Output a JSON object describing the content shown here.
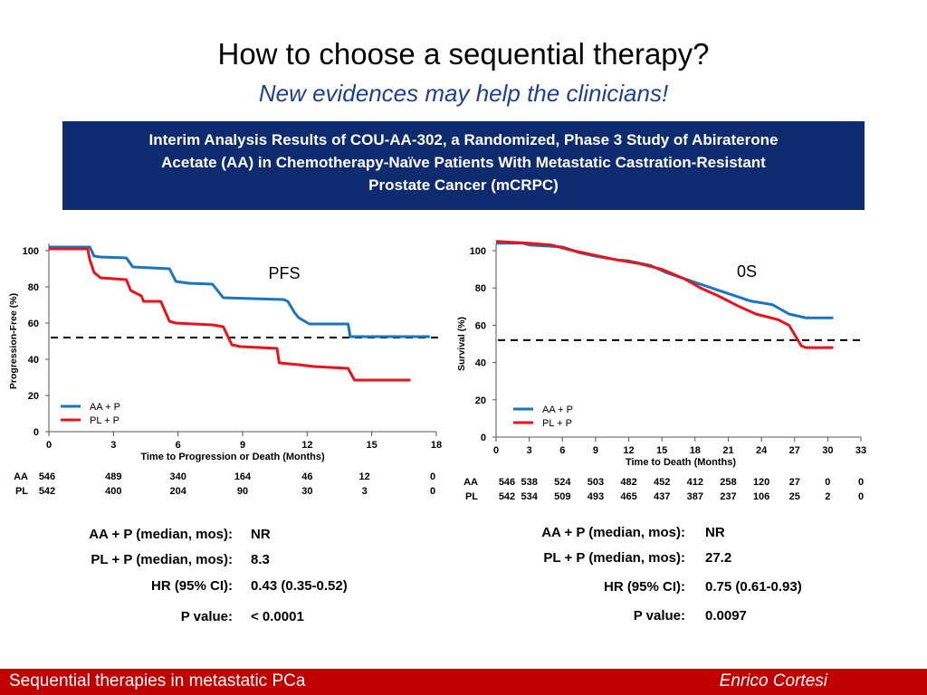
{
  "slide": {
    "title": "How to choose a sequential therapy?",
    "subtitle": "New evidences may help the clinicians!"
  },
  "study_box": {
    "lines": [
      "Interim Analysis Results of COU-AA-302, a Randomized, Phase 3 Study of Abiraterone",
      "Acetate (AA) in Chemotherapy-Naïve Patients With Metastatic Castration-Resistant",
      "Prostate Cancer (mCRPC)"
    ],
    "background": "#0d2b6e"
  },
  "colors": {
    "aa_p": "#1a75bc",
    "pl_p": "#e8141b",
    "footer": "#c00000"
  },
  "chart_data": [
    {
      "type": "line",
      "title": "PFS",
      "xlabel": "Time to Progression or Death (Months)",
      "ylabel": "Progression-Free (%)",
      "xlim": [
        0,
        18
      ],
      "ylim": [
        0,
        100
      ],
      "x_ticks": [
        0,
        3,
        6,
        9,
        12,
        15,
        18
      ],
      "y_ticks": [
        0,
        20,
        40,
        60,
        80,
        100
      ],
      "reference_line_y": 52,
      "legend": [
        "AA + P",
        "PL + P"
      ],
      "legend_position": "bottom-left",
      "series": [
        {
          "name": "AA + P",
          "color": "#1a75bc",
          "points": [
            [
              0,
              102
            ],
            [
              0.3,
              102
            ],
            [
              1.9,
              102
            ],
            [
              2.1,
              97
            ],
            [
              2.4,
              96.5
            ],
            [
              3.6,
              96
            ],
            [
              3.9,
              91
            ],
            [
              5.6,
              90
            ],
            [
              5.9,
              83
            ],
            [
              6.5,
              82
            ],
            [
              7.6,
              81.5
            ],
            [
              8.1,
              74
            ],
            [
              10.9,
              73
            ],
            [
              11.1,
              72
            ],
            [
              11.4,
              66
            ],
            [
              11.6,
              63
            ],
            [
              12.1,
              59.5
            ],
            [
              13.9,
              59.5
            ],
            [
              14.0,
              52.5
            ],
            [
              17.7,
              52.5
            ]
          ]
        },
        {
          "name": "PL + P",
          "color": "#e8141b",
          "points": [
            [
              0,
              101
            ],
            [
              0.3,
              101
            ],
            [
              1.8,
              101
            ],
            [
              1.9,
              95
            ],
            [
              2.1,
              88
            ],
            [
              2.4,
              85
            ],
            [
              3.6,
              84
            ],
            [
              3.8,
              78
            ],
            [
              4.3,
              75
            ],
            [
              4.4,
              72
            ],
            [
              5.2,
              72
            ],
            [
              5.6,
              61
            ],
            [
              5.9,
              60
            ],
            [
              7.6,
              59
            ],
            [
              8.1,
              58
            ],
            [
              8.5,
              48
            ],
            [
              8.9,
              47
            ],
            [
              10.6,
              46
            ],
            [
              10.7,
              38
            ],
            [
              11.6,
              37
            ],
            [
              12.3,
              36
            ],
            [
              13.9,
              35
            ],
            [
              14.2,
              28.5
            ],
            [
              16.8,
              28.5
            ]
          ]
        }
      ],
      "at_risk": {
        "columns": [
          "0",
          "3",
          "6",
          "9",
          "12",
          "15",
          "18"
        ],
        "rows": [
          {
            "label": "AA",
            "values": [
              "546",
              "489",
              "340",
              "164",
              "46",
              "12",
              "0"
            ]
          },
          {
            "label": "PL",
            "values": [
              "542",
              "400",
              "204",
              "90",
              "30",
              "3",
              "0"
            ]
          }
        ]
      }
    },
    {
      "type": "line",
      "title": "0S",
      "xlabel": "Time to Death (Months)",
      "ylabel": "Survival (%)",
      "xlim": [
        0,
        33
      ],
      "ylim": [
        0,
        100
      ],
      "x_ticks": [
        0,
        3,
        6,
        9,
        12,
        15,
        18,
        21,
        24,
        27,
        30,
        33
      ],
      "y_ticks": [
        0,
        20,
        40,
        60,
        80,
        100
      ],
      "reference_line_y": 52,
      "legend": [
        "AA + P",
        "PL + P"
      ],
      "legend_position": "bottom-left",
      "series": [
        {
          "name": "AA + P",
          "color": "#1a75bc",
          "points": [
            [
              0,
              104
            ],
            [
              2.5,
              104
            ],
            [
              3,
              103
            ],
            [
              6,
              102
            ],
            [
              7.5,
              99
            ],
            [
              9,
              97
            ],
            [
              11,
              95
            ],
            [
              12,
              94.5
            ],
            [
              14,
              92
            ],
            [
              15.5,
              88
            ],
            [
              18,
              83
            ],
            [
              20,
              79
            ],
            [
              21.5,
              76
            ],
            [
              23,
              73
            ],
            [
              25,
              71
            ],
            [
              26.5,
              66
            ],
            [
              28,
              64
            ],
            [
              30.5,
              64
            ]
          ]
        },
        {
          "name": "PL + P",
          "color": "#e8141b",
          "points": [
            [
              0,
              105
            ],
            [
              3,
              104
            ],
            [
              5,
              103
            ],
            [
              7,
              100
            ],
            [
              9,
              97.5
            ],
            [
              11,
              95
            ],
            [
              13,
              93
            ],
            [
              15,
              90
            ],
            [
              17,
              85
            ],
            [
              18.5,
              80
            ],
            [
              20,
              76
            ],
            [
              22,
              70
            ],
            [
              23.5,
              66
            ],
            [
              25.5,
              63
            ],
            [
              26.5,
              60
            ],
            [
              27.3,
              52
            ],
            [
              27.6,
              49
            ],
            [
              28,
              48
            ],
            [
              30.5,
              48
            ]
          ]
        }
      ],
      "at_risk": {
        "columns": [
          "0",
          "3",
          "6",
          "9",
          "12",
          "15",
          "18",
          "21",
          "24",
          "27",
          "30",
          "33"
        ],
        "rows": [
          {
            "label": "AA",
            "values": [
              "546",
              "538",
              "524",
              "503",
              "482",
              "452",
              "412",
              "258",
              "120",
              "27",
              "0",
              "0"
            ]
          },
          {
            "label": "PL",
            "values": [
              "542",
              "534",
              "509",
              "493",
              "465",
              "437",
              "387",
              "237",
              "106",
              "25",
              "2",
              "0"
            ]
          }
        ]
      }
    }
  ],
  "stats_left": [
    {
      "label": "AA + P (median, mos):",
      "value": "NR"
    },
    {
      "label": "PL + P (median, mos):",
      "value": "8.3"
    },
    {
      "label": "HR (95% CI):",
      "value": "0.43 (0.35-0.52)"
    },
    {
      "label": "P value:",
      "value": "< 0.0001"
    }
  ],
  "stats_right": [
    {
      "label": "AA + P (median, mos):",
      "value": "NR"
    },
    {
      "label": "PL + P (median, mos):",
      "value": "27.2"
    },
    {
      "label": "HR (95% CI):",
      "value": "0.75 (0.61-0.93)"
    },
    {
      "label": "P value:",
      "value": "0.0097"
    }
  ],
  "footer": {
    "left": "Sequential therapies in metastatic PCa",
    "right": "Enrico  Cortesi"
  }
}
